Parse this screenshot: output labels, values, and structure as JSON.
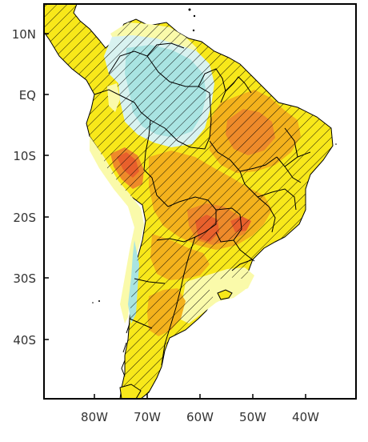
{
  "map": {
    "lat_labels": [
      "10N",
      "EQ",
      "10S",
      "20S",
      "30S",
      "40S"
    ],
    "lon_labels": [
      "80W",
      "70W",
      "60W",
      "50W",
      "40W"
    ],
    "colors": {
      "ocean": "#ffffff",
      "frame": "#000000",
      "yellow": "#f8e81a",
      "light_yellow": "#fafaaa",
      "orange": "#f4b21c",
      "dark_orange": "#ee8a2a",
      "red_orange": "#e8602c",
      "light_cyan": "#d8f2f0",
      "cyan": "#a9e4e2",
      "hatch": "#000000"
    }
  }
}
